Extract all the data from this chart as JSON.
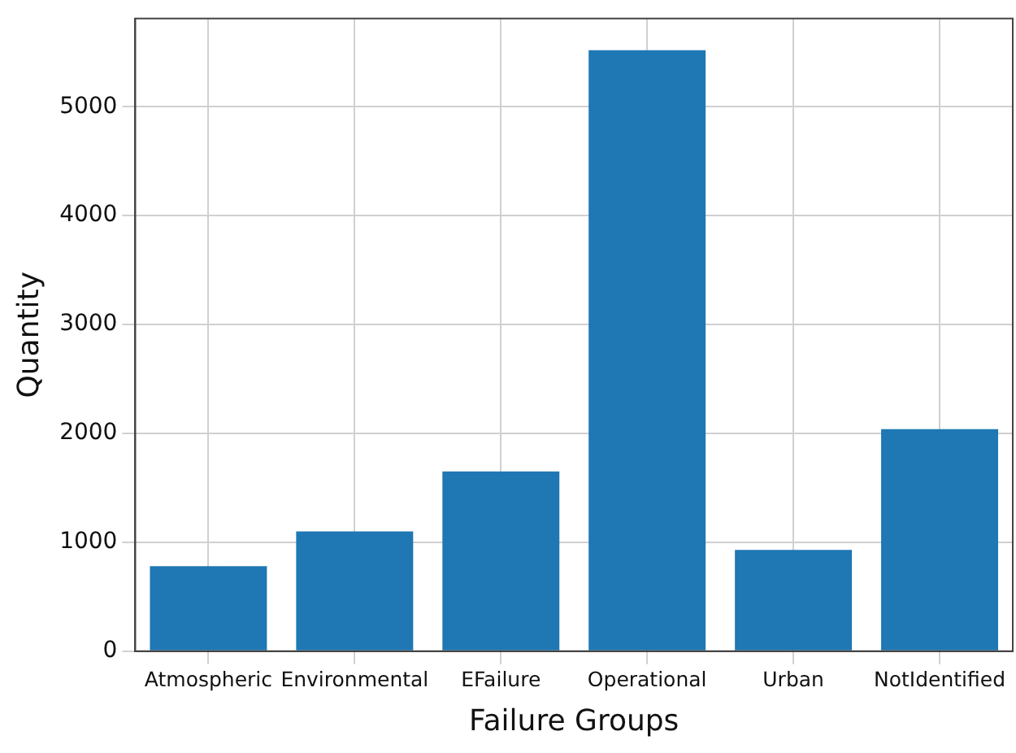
{
  "chart_data": {
    "type": "bar",
    "xlabel": "Failure Groups",
    "ylabel": "Quantity",
    "categories": [
      "Atmospheric",
      "Environmental",
      "EFailure",
      "Operational",
      "Urban",
      "NotIdentified"
    ],
    "values": [
      780,
      1100,
      1650,
      5520,
      930,
      2040
    ],
    "color": "#1f77b4",
    "ylim": [
      0,
      5810
    ],
    "yticks": [
      0,
      1000,
      2000,
      3000,
      4000,
      5000
    ],
    "grid": true,
    "legend": false
  }
}
